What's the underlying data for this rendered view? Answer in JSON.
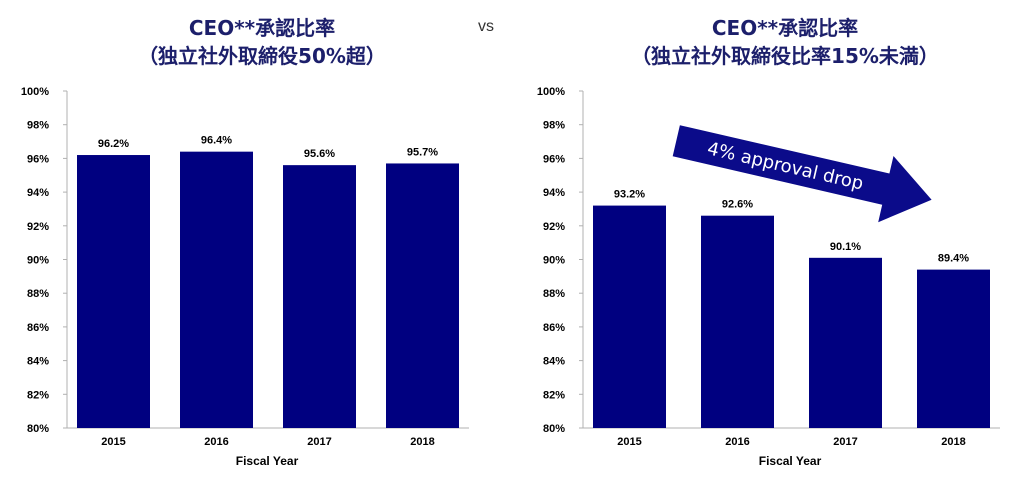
{
  "header": {
    "left_title_line1": "CEO**承認比率",
    "left_title_line2": "（独立社外取締役50%超）",
    "vs_label": "vs",
    "right_title_line1": "CEO**承認比率",
    "right_title_line2": "（独立社外取締役比率15%未満）"
  },
  "annotation": {
    "arrow_text": "4% approval drop",
    "arrow_color": "#0b0b8a"
  },
  "colors": {
    "bar": "#000080",
    "title": "#1c1f6b"
  },
  "chart_data": [
    {
      "type": "bar",
      "title": "CEO**承認比率（独立社外取締役50%超）",
      "xlabel": "Fiscal Year",
      "ylabel": "",
      "categories": [
        "2015",
        "2016",
        "2017",
        "2018"
      ],
      "values": [
        96.2,
        96.4,
        95.6,
        95.7
      ],
      "value_labels": [
        "96.2%",
        "96.4%",
        "95.6%",
        "95.7%"
      ],
      "ylim": [
        80,
        100
      ],
      "yticks": [
        80,
        82,
        84,
        86,
        88,
        90,
        92,
        94,
        96,
        98,
        100
      ],
      "ytick_labels": [
        "80%",
        "82%",
        "84%",
        "86%",
        "88%",
        "90%",
        "92%",
        "94%",
        "96%",
        "98%",
        "100%"
      ],
      "grid": false
    },
    {
      "type": "bar",
      "title": "CEO**承認比率（独立社外取締役比率15%未満）",
      "xlabel": "Fiscal Year",
      "ylabel": "",
      "categories": [
        "2015",
        "2016",
        "2017",
        "2018"
      ],
      "values": [
        93.2,
        92.6,
        90.1,
        89.4
      ],
      "value_labels": [
        "93.2%",
        "92.6%",
        "90.1%",
        "89.4%"
      ],
      "ylim": [
        80,
        100
      ],
      "yticks": [
        80,
        82,
        84,
        86,
        88,
        90,
        92,
        94,
        96,
        98,
        100
      ],
      "ytick_labels": [
        "80%",
        "82%",
        "84%",
        "86%",
        "88%",
        "90%",
        "92%",
        "94%",
        "96%",
        "98%",
        "100%"
      ],
      "grid": false
    }
  ]
}
